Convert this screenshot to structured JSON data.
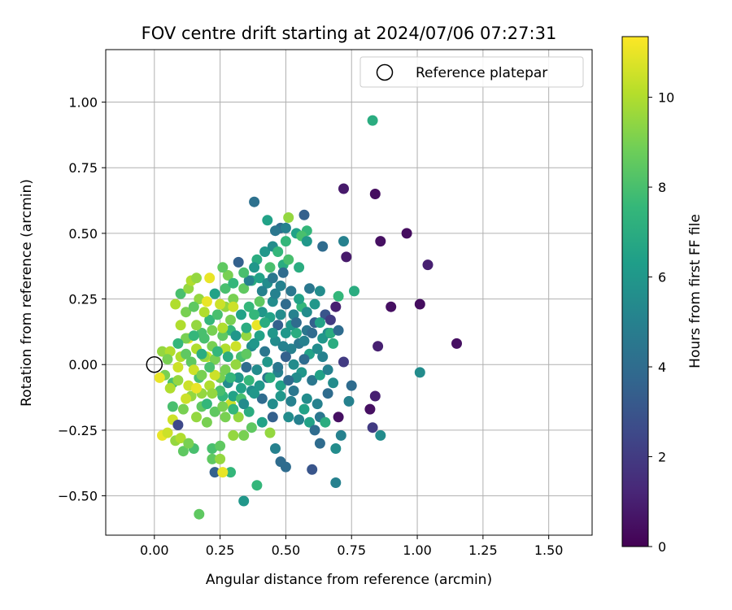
{
  "chart_data": {
    "type": "scatter",
    "title": "FOV centre drift starting at 2024/07/06 07:27:31",
    "xlabel": "Angular distance from reference (arcmin)",
    "ylabel": "Rotation from reference (arcmin)",
    "xlim": [
      -0.185,
      1.665
    ],
    "ylim": [
      -0.65,
      1.2
    ],
    "xticks": [
      "0.00",
      "0.25",
      "0.50",
      "0.75",
      "1.00",
      "1.25",
      "1.50"
    ],
    "yticks": [
      "−0.50",
      "−0.25",
      "0.00",
      "0.25",
      "0.50",
      "0.75",
      "1.00"
    ],
    "xtick_values": [
      0,
      0.25,
      0.5,
      0.75,
      1.0,
      1.25,
      1.5
    ],
    "ytick_values": [
      -0.5,
      -0.25,
      0,
      0.25,
      0.5,
      0.75,
      1.0
    ],
    "grid": true,
    "legend": {
      "placement": "top-right",
      "entries": [
        "Reference platepar"
      ]
    },
    "reference_point": {
      "x": 0.0,
      "y": 0.0
    },
    "colorbar": {
      "label": "Hours from first FF file",
      "range": [
        0,
        11.35
      ],
      "tick_values": [
        0,
        2,
        4,
        6,
        8,
        10
      ],
      "ticks": [
        "0",
        "2",
        "4",
        "6",
        "8",
        "10"
      ],
      "colormap": "viridis",
      "stops": [
        "#440154",
        "#482878",
        "#3e4989",
        "#31688e",
        "#26828e",
        "#1f9e89",
        "#35b779",
        "#6ece58",
        "#b5de2b",
        "#fde725"
      ]
    },
    "points": [
      [
        0.83,
        0.93,
        7.0
      ],
      [
        0.72,
        0.67,
        0.8
      ],
      [
        0.84,
        0.65,
        0.4
      ],
      [
        0.38,
        0.62,
        4.2
      ],
      [
        0.86,
        0.47,
        0.5
      ],
      [
        0.96,
        0.5,
        0.4
      ],
      [
        1.04,
        0.38,
        1.0
      ],
      [
        0.9,
        0.22,
        0.5
      ],
      [
        1.01,
        0.23,
        0.4
      ],
      [
        1.15,
        0.08,
        0.5
      ],
      [
        0.85,
        0.07,
        1.0
      ],
      [
        1.01,
        -0.03,
        5.5
      ],
      [
        0.82,
        -0.17,
        0.5
      ],
      [
        0.84,
        -0.12,
        1.0
      ],
      [
        0.83,
        -0.24,
        2.0
      ],
      [
        0.86,
        -0.27,
        5.5
      ],
      [
        0.76,
        0.28,
        7.0
      ],
      [
        0.72,
        0.47,
        5.0
      ],
      [
        0.64,
        0.45,
        4.0
      ],
      [
        0.73,
        0.41,
        0.8
      ],
      [
        0.69,
        0.22,
        1.0
      ],
      [
        0.7,
        0.26,
        7.5
      ],
      [
        0.72,
        0.01,
        2.0
      ],
      [
        0.75,
        -0.08,
        4.0
      ],
      [
        0.74,
        -0.14,
        5.0
      ],
      [
        0.7,
        -0.2,
        0.5
      ],
      [
        0.69,
        -0.45,
        5.0
      ],
      [
        0.6,
        -0.4,
        3.0
      ],
      [
        0.69,
        -0.32,
        5.5
      ],
      [
        0.71,
        -0.27,
        5.0
      ],
      [
        0.63,
        -0.3,
        4.0
      ],
      [
        0.48,
        -0.37,
        4.0
      ],
      [
        0.5,
        -0.39,
        4.0
      ],
      [
        0.46,
        -0.32,
        5.0
      ],
      [
        0.34,
        -0.52,
        6.0
      ],
      [
        0.39,
        -0.46,
        7.5
      ],
      [
        0.17,
        -0.57,
        8.5
      ],
      [
        0.29,
        -0.41,
        7.5
      ],
      [
        0.23,
        -0.41,
        3.5
      ],
      [
        0.26,
        -0.41,
        11.0
      ],
      [
        0.22,
        -0.36,
        8.5
      ],
      [
        0.25,
        -0.36,
        9.5
      ],
      [
        0.11,
        -0.33,
        8.5
      ],
      [
        0.15,
        -0.32,
        8.0
      ],
      [
        0.08,
        -0.29,
        9.5
      ],
      [
        0.1,
        -0.28,
        10.0
      ],
      [
        0.03,
        -0.27,
        11.0
      ],
      [
        0.05,
        -0.26,
        10.5
      ],
      [
        0.07,
        -0.21,
        10.5
      ],
      [
        0.13,
        -0.3,
        9.0
      ],
      [
        0.22,
        -0.32,
        8.0
      ],
      [
        0.25,
        -0.31,
        8.5
      ],
      [
        0.34,
        -0.27,
        9.0
      ],
      [
        0.3,
        -0.27,
        9.5
      ],
      [
        0.44,
        -0.26,
        9.5
      ],
      [
        0.37,
        -0.24,
        8.5
      ],
      [
        0.32,
        -0.2,
        9.5
      ],
      [
        0.29,
        -0.15,
        10.5
      ],
      [
        0.2,
        -0.22,
        9.0
      ],
      [
        0.16,
        -0.2,
        9.5
      ],
      [
        0.09,
        -0.23,
        2.5
      ],
      [
        0.07,
        -0.16,
        8.0
      ],
      [
        0.14,
        -0.12,
        9.5
      ],
      [
        0.07,
        -0.07,
        8.0
      ],
      [
        0.04,
        -0.04,
        9.0
      ],
      [
        0.09,
        -0.01,
        10.5
      ],
      [
        0.03,
        0.05,
        9.5
      ],
      [
        0.1,
        0.03,
        10.0
      ],
      [
        0.16,
        0.06,
        10.0
      ],
      [
        0.13,
        0.1,
        11.0
      ],
      [
        0.2,
        0.03,
        10.5
      ],
      [
        0.23,
        0.02,
        9.0
      ],
      [
        0.27,
        0.06,
        10.0
      ],
      [
        0.31,
        0.07,
        10.5
      ],
      [
        0.35,
        0.11,
        9.5
      ],
      [
        0.39,
        0.15,
        11.0
      ],
      [
        0.41,
        0.2,
        6.0
      ],
      [
        0.45,
        0.24,
        5.5
      ],
      [
        0.48,
        0.3,
        5.0
      ],
      [
        0.49,
        0.38,
        7.0
      ],
      [
        0.51,
        0.4,
        8.0
      ],
      [
        0.5,
        0.47,
        7.5
      ],
      [
        0.48,
        0.52,
        4.0
      ],
      [
        0.46,
        0.51,
        4.5
      ],
      [
        0.5,
        0.52,
        5.0
      ],
      [
        0.51,
        0.56,
        9.5
      ],
      [
        0.43,
        0.55,
        6.5
      ],
      [
        0.54,
        0.5,
        6.5
      ],
      [
        0.57,
        0.57,
        3.5
      ],
      [
        0.58,
        0.51,
        7.5
      ],
      [
        0.56,
        0.49,
        8.0
      ],
      [
        0.58,
        0.47,
        6.0
      ],
      [
        0.55,
        0.37,
        7.0
      ],
      [
        0.59,
        0.29,
        4.5
      ],
      [
        0.63,
        0.28,
        5.5
      ],
      [
        0.65,
        0.19,
        3.0
      ],
      [
        0.61,
        0.16,
        3.5
      ],
      [
        0.67,
        0.17,
        2.0
      ],
      [
        0.66,
        0.12,
        5.5
      ],
      [
        0.64,
        0.1,
        6.0
      ],
      [
        0.68,
        0.08,
        7.0
      ],
      [
        0.64,
        0.03,
        5.0
      ],
      [
        0.59,
        0.04,
        6.5
      ],
      [
        0.55,
        0.08,
        4.5
      ],
      [
        0.52,
        0.06,
        5.0
      ],
      [
        0.5,
        0.03,
        3.5
      ],
      [
        0.47,
        -0.03,
        5.0
      ],
      [
        0.43,
        -0.05,
        4.5
      ],
      [
        0.39,
        -0.02,
        5.5
      ],
      [
        0.35,
        -0.01,
        4.0
      ],
      [
        0.32,
        -0.05,
        6.0
      ],
      [
        0.28,
        -0.07,
        5.5
      ],
      [
        0.25,
        -0.05,
        9.0
      ],
      [
        0.21,
        -0.08,
        10.0
      ],
      [
        0.18,
        -0.11,
        9.5
      ],
      [
        0.12,
        -0.13,
        10.5
      ],
      [
        0.11,
        -0.17,
        9.0
      ],
      [
        0.18,
        -0.16,
        8.5
      ],
      [
        0.26,
        -0.12,
        7.5
      ],
      [
        0.3,
        -0.12,
        6.5
      ],
      [
        0.37,
        -0.1,
        5.5
      ],
      [
        0.41,
        -0.13,
        4.0
      ],
      [
        0.45,
        -0.15,
        5.5
      ],
      [
        0.48,
        -0.12,
        6.0
      ],
      [
        0.53,
        -0.1,
        4.5
      ],
      [
        0.58,
        -0.13,
        5.5
      ],
      [
        0.62,
        -0.15,
        5.0
      ],
      [
        0.66,
        -0.11,
        4.0
      ],
      [
        0.63,
        -0.2,
        4.5
      ],
      [
        0.59,
        -0.22,
        6.5
      ],
      [
        0.55,
        -0.21,
        5.0
      ],
      [
        0.51,
        -0.2,
        5.5
      ],
      [
        0.45,
        -0.2,
        3.5
      ],
      [
        0.41,
        -0.22,
        6.5
      ],
      [
        0.36,
        -0.18,
        7.0
      ],
      [
        0.33,
        -0.13,
        8.0
      ],
      [
        0.27,
        -0.2,
        9.0
      ],
      [
        0.23,
        -0.18,
        8.5
      ],
      [
        0.2,
        -0.15,
        7.5
      ],
      [
        0.17,
        -0.05,
        8.0
      ],
      [
        0.14,
        0.01,
        8.5
      ],
      [
        0.18,
        0.12,
        8.0
      ],
      [
        0.21,
        0.17,
        7.5
      ],
      [
        0.24,
        0.19,
        8.0
      ],
      [
        0.27,
        0.22,
        9.5
      ],
      [
        0.3,
        0.25,
        9.0
      ],
      [
        0.34,
        0.29,
        8.5
      ],
      [
        0.37,
        0.32,
        7.0
      ],
      [
        0.4,
        0.33,
        6.5
      ],
      [
        0.43,
        0.31,
        5.5
      ],
      [
        0.46,
        0.27,
        5.0
      ],
      [
        0.5,
        0.23,
        4.0
      ],
      [
        0.53,
        0.19,
        5.0
      ],
      [
        0.56,
        0.22,
        7.5
      ],
      [
        0.58,
        0.13,
        4.5
      ],
      [
        0.54,
        0.12,
        7.0
      ],
      [
        0.52,
        0.15,
        6.0
      ],
      [
        0.47,
        0.15,
        3.5
      ],
      [
        0.44,
        0.18,
        6.5
      ],
      [
        0.4,
        0.11,
        6.5
      ],
      [
        0.37,
        0.07,
        5.5
      ],
      [
        0.33,
        0.03,
        8.0
      ],
      [
        0.29,
        0.13,
        7.5
      ],
      [
        0.26,
        0.11,
        8.5
      ],
      [
        0.22,
        0.07,
        9.0
      ],
      [
        0.19,
        0.03,
        9.5
      ],
      [
        0.15,
        -0.02,
        10.5
      ],
      [
        0.12,
        0.04,
        8.5
      ],
      [
        0.1,
        0.15,
        10.0
      ],
      [
        0.08,
        0.23,
        10.0
      ],
      [
        0.1,
        0.27,
        8.0
      ],
      [
        0.13,
        0.29,
        9.5
      ],
      [
        0.14,
        0.32,
        10.0
      ],
      [
        0.17,
        0.25,
        9.5
      ],
      [
        0.21,
        0.33,
        11.0
      ],
      [
        0.25,
        0.23,
        10.5
      ],
      [
        0.28,
        0.34,
        9.0
      ],
      [
        0.32,
        0.39,
        3.5
      ],
      [
        0.36,
        0.32,
        5.0
      ],
      [
        0.39,
        0.4,
        7.0
      ],
      [
        0.42,
        0.43,
        6.0
      ],
      [
        0.45,
        0.45,
        5.5
      ],
      [
        0.47,
        0.43,
        7.5
      ],
      [
        0.49,
        0.35,
        4.0
      ],
      [
        0.44,
        0.37,
        8.0
      ],
      [
        0.4,
        0.24,
        8.5
      ],
      [
        0.36,
        0.22,
        7.5
      ],
      [
        0.33,
        0.19,
        6.5
      ],
      [
        0.29,
        0.17,
        9.0
      ],
      [
        0.26,
        0.14,
        10.0
      ],
      [
        0.22,
        0.13,
        9.0
      ],
      [
        0.19,
        0.1,
        8.0
      ],
      [
        0.16,
        0.15,
        9.5
      ],
      [
        0.12,
        0.1,
        9.0
      ],
      [
        0.09,
        0.08,
        7.5
      ],
      [
        0.06,
        0.05,
        10.0
      ],
      [
        0.05,
        0.02,
        9.0
      ],
      [
        0.02,
        -0.05,
        11.0
      ],
      [
        0.06,
        -0.09,
        10.0
      ],
      [
        0.09,
        -0.06,
        9.5
      ],
      [
        0.13,
        -0.08,
        10.5
      ],
      [
        0.16,
        -0.09,
        11.0
      ],
      [
        0.23,
        -0.04,
        10.5
      ],
      [
        0.27,
        -0.02,
        9.0
      ],
      [
        0.31,
        0.0,
        9.5
      ],
      [
        0.35,
        0.04,
        8.5
      ],
      [
        0.38,
        0.08,
        6.0
      ],
      [
        0.42,
        0.05,
        4.5
      ],
      [
        0.46,
        0.09,
        5.5
      ],
      [
        0.5,
        0.12,
        6.0
      ],
      [
        0.53,
        0.0,
        5.5
      ],
      [
        0.56,
        -0.03,
        6.0
      ],
      [
        0.6,
        -0.06,
        4.5
      ],
      [
        0.63,
        -0.04,
        6.5
      ],
      [
        0.66,
        -0.02,
        5.0
      ],
      [
        0.68,
        -0.07,
        5.5
      ],
      [
        0.65,
        -0.22,
        7.0
      ],
      [
        0.61,
        -0.25,
        4.0
      ],
      [
        0.57,
        -0.17,
        6.5
      ],
      [
        0.52,
        -0.14,
        5.0
      ],
      [
        0.48,
        -0.08,
        6.5
      ],
      [
        0.44,
        -0.05,
        7.0
      ],
      [
        0.4,
        -0.08,
        6.0
      ],
      [
        0.36,
        -0.06,
        7.5
      ],
      [
        0.33,
        -0.09,
        6.5
      ],
      [
        0.29,
        -0.05,
        7.5
      ],
      [
        0.25,
        -0.1,
        8.0
      ],
      [
        0.21,
        -0.01,
        8.0
      ],
      [
        0.18,
        0.04,
        7.0
      ],
      [
        0.15,
        0.11,
        7.5
      ],
      [
        0.12,
        0.2,
        9.0
      ],
      [
        0.15,
        0.22,
        8.5
      ],
      [
        0.19,
        0.2,
        10.0
      ],
      [
        0.23,
        0.27,
        6.5
      ],
      [
        0.27,
        0.29,
        8.0
      ],
      [
        0.3,
        0.31,
        7.5
      ],
      [
        0.34,
        0.35,
        8.0
      ],
      [
        0.38,
        0.37,
        6.0
      ],
      [
        0.41,
        0.28,
        5.0
      ],
      [
        0.45,
        0.33,
        4.5
      ],
      [
        0.48,
        0.19,
        5.5
      ],
      [
        0.52,
        0.28,
        4.5
      ],
      [
        0.55,
        0.25,
        6.5
      ],
      [
        0.58,
        0.2,
        5.5
      ],
      [
        0.61,
        0.23,
        6.0
      ],
      [
        0.62,
        0.06,
        5.5
      ],
      [
        0.57,
        0.02,
        4.0
      ],
      [
        0.54,
        -0.05,
        5.5
      ],
      [
        0.51,
        -0.06,
        4.0
      ],
      [
        0.47,
        -0.01,
        4.5
      ],
      [
        0.43,
        0.01,
        6.0
      ],
      [
        0.38,
        -0.11,
        6.0
      ],
      [
        0.34,
        -0.15,
        5.5
      ],
      [
        0.3,
        -0.17,
        7.5
      ],
      [
        0.26,
        -0.16,
        9.0
      ],
      [
        0.22,
        -0.11,
        9.5
      ],
      [
        0.18,
        -0.04,
        9.0
      ],
      [
        0.24,
        0.05,
        7.5
      ],
      [
        0.28,
        0.03,
        7.0
      ],
      [
        0.31,
        0.11,
        6.0
      ],
      [
        0.35,
        0.14,
        7.0
      ],
      [
        0.38,
        0.19,
        7.5
      ],
      [
        0.42,
        0.16,
        7.0
      ],
      [
        0.45,
        0.12,
        6.0
      ],
      [
        0.49,
        0.07,
        5.0
      ],
      [
        0.54,
        0.16,
        4.0
      ],
      [
        0.57,
        0.09,
        5.0
      ],
      [
        0.6,
        0.12,
        4.0
      ],
      [
        0.63,
        0.16,
        6.5
      ],
      [
        0.67,
        0.12,
        7.0
      ],
      [
        0.7,
        0.13,
        4.0
      ],
      [
        0.2,
        0.24,
        11.0
      ],
      [
        0.3,
        0.22,
        10.5
      ],
      [
        0.16,
        0.33,
        9.5
      ],
      [
        0.26,
        0.37,
        8.5
      ]
    ]
  }
}
